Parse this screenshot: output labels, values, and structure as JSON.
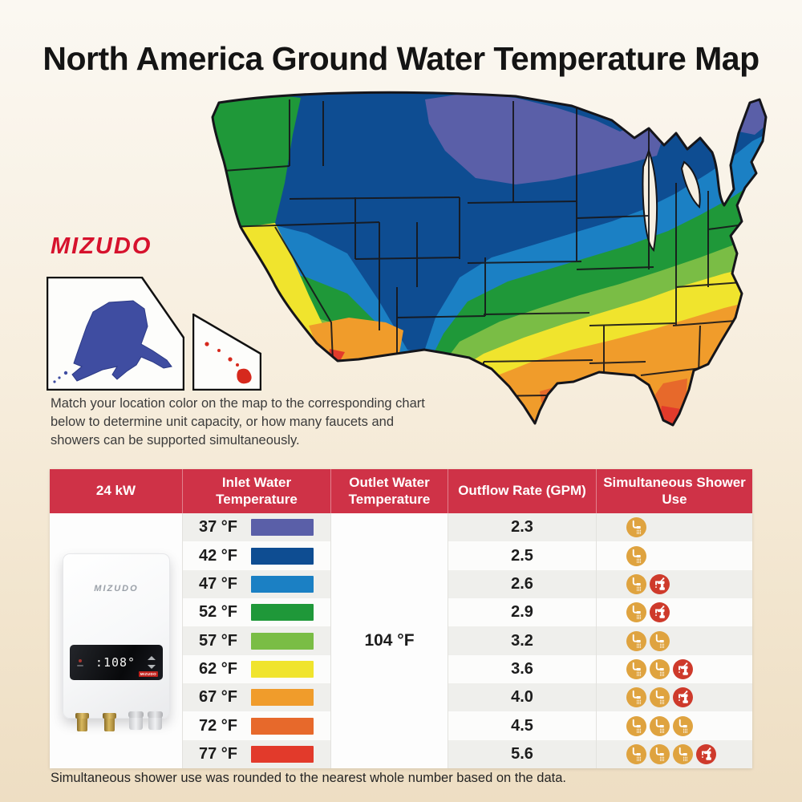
{
  "title": "North America Ground Water Temperature Map",
  "brand": "MIZUDO",
  "description": "Match your location color on the map to the corresponding chart below to determine unit capacity, or how many faucets and showers can be supported simultaneously.",
  "footnote": "Simultaneous shower use was rounded to the nearest whole number based on the data.",
  "heater": {
    "brand": "MIZUDO",
    "display_value": ":108°",
    "badge": "MIZUDO"
  },
  "chart_data": {
    "type": "table",
    "title": "North America Ground Water Temperature Map",
    "unit_power": "24 kW",
    "columns": [
      "24 kW",
      "Inlet Water Temperature",
      "Outlet Water Temperature",
      "Outflow Rate (GPM)",
      "Simultaneous Shower Use"
    ],
    "outlet_water_temperature_all_rows": "104 °F",
    "rows": [
      {
        "inlet": "37 °F",
        "swatch": "#5A5FA8",
        "gpm": "2.3",
        "showers": 1,
        "faucets": 0
      },
      {
        "inlet": "42 °F",
        "swatch": "#0E4D92",
        "gpm": "2.5",
        "showers": 1,
        "faucets": 0
      },
      {
        "inlet": "47 °F",
        "swatch": "#1B80C4",
        "gpm": "2.6",
        "showers": 1,
        "faucets": 1
      },
      {
        "inlet": "52 °F",
        "swatch": "#1F9839",
        "gpm": "2.9",
        "showers": 1,
        "faucets": 1
      },
      {
        "inlet": "57 °F",
        "swatch": "#7ABD45",
        "gpm": "3.2",
        "showers": 2,
        "faucets": 0
      },
      {
        "inlet": "62 °F",
        "swatch": "#F0E42D",
        "gpm": "3.6",
        "showers": 2,
        "faucets": 1
      },
      {
        "inlet": "67 °F",
        "swatch": "#F09C2B",
        "gpm": "4.0",
        "showers": 2,
        "faucets": 1
      },
      {
        "inlet": "72 °F",
        "swatch": "#E7692B",
        "gpm": "4.5",
        "showers": 3,
        "faucets": 0
      },
      {
        "inlet": "77 °F",
        "swatch": "#E23A2B",
        "gpm": "5.6",
        "showers": 3,
        "faucets": 1
      }
    ]
  },
  "colors": {
    "header_red": "#CF3247",
    "logo_red": "#D6122D",
    "shower_icon_circle": "#DFA33F",
    "faucet_icon_circle": "#CE3A2B",
    "row_stripe": "#EFEFEC",
    "row_plain": "#FCFCFB",
    "map_band_colors": [
      "#5A5FA8",
      "#0E4D92",
      "#1B80C4",
      "#1F9839",
      "#7ABD45",
      "#F0E42D",
      "#F09C2B",
      "#E7692B",
      "#E23A2B"
    ],
    "alaska_fill": "#3F4DA1",
    "hawaii_islands": "#D6291D"
  }
}
